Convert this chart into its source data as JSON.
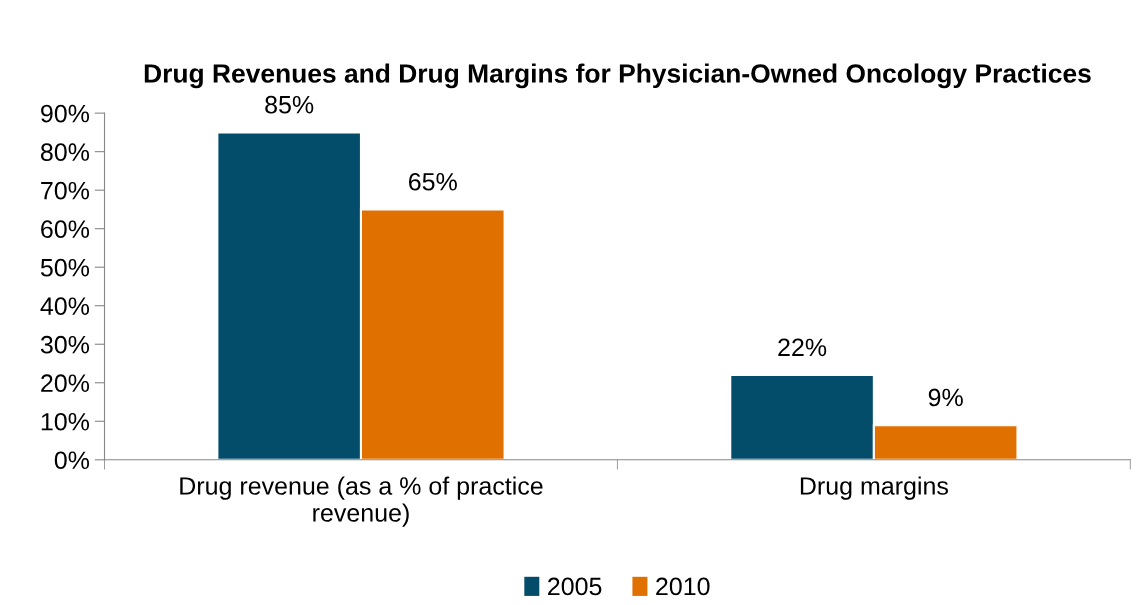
{
  "chart_data": {
    "type": "bar",
    "title": "Drug Revenues and Drug Margins for Physician-Owned Oncology Practices",
    "categories": [
      "Drug revenue (as a % of practice revenue)",
      "Drug margins"
    ],
    "series": [
      {
        "name": "2005",
        "color": "#034d6a",
        "values": [
          85,
          22
        ],
        "value_labels": [
          "85%",
          "22%"
        ]
      },
      {
        "name": "2010",
        "color": "#e07000",
        "values": [
          65,
          9
        ],
        "value_labels": [
          "65%",
          "9%"
        ]
      }
    ],
    "ylim": [
      0,
      90
    ],
    "yticks": [
      {
        "value": 0,
        "label": "0%"
      },
      {
        "value": 10,
        "label": "10%"
      },
      {
        "value": 20,
        "label": "20%"
      },
      {
        "value": 30,
        "label": "30%"
      },
      {
        "value": 40,
        "label": "40%"
      },
      {
        "value": 50,
        "label": "50%"
      },
      {
        "value": 60,
        "label": "60%"
      },
      {
        "value": 70,
        "label": "70%"
      },
      {
        "value": 80,
        "label": "80%"
      },
      {
        "value": 90,
        "label": "90%"
      }
    ],
    "grid": false,
    "legend": "bottom"
  }
}
